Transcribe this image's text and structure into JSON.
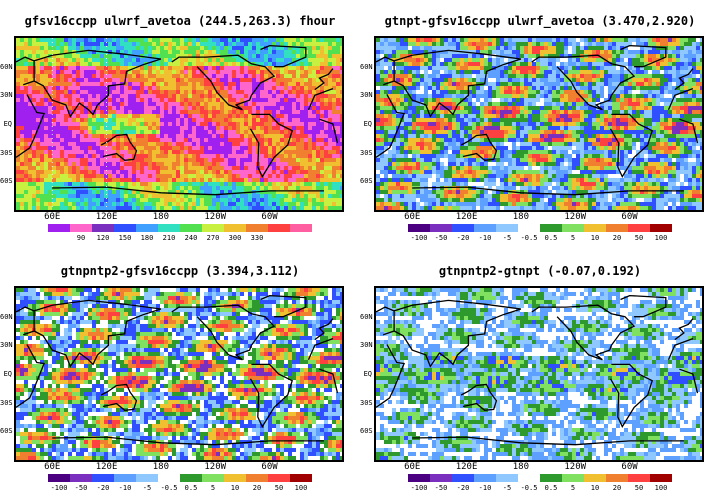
{
  "panels": [
    {
      "title": "gfsv16ccpp  ulwrf_avetoa  (244.5,263.3)  fhour",
      "colorbar": [
        "#a020f0",
        "#ff66cc",
        "#7b2fbe",
        "#3050ff",
        "#40a0ff",
        "#30e0c0",
        "#50e050",
        "#c8f040",
        "#f0c030",
        "#f08030",
        "#ff4040",
        "#ff5fa0"
      ],
      "colorbar_labels": [
        "90",
        "120",
        "150",
        "180",
        "210",
        "240",
        "270",
        "300",
        "330"
      ],
      "palette": [
        "#3050ff",
        "#40a0ff",
        "#30e0c0",
        "#50e050",
        "#c8f040",
        "#f0c030",
        "#f08030",
        "#ff4040",
        "#ff66cc",
        "#a020f0"
      ],
      "field": "olr"
    },
    {
      "title": "gtnpt-gfsv16ccpp  ulwrf_avetoa  (3.470,2.920)",
      "colorbar": [
        "#4b0082",
        "#7b2fbe",
        "#3050ff",
        "#5ea0ff",
        "#8ec8ff",
        "#ffffff",
        "#2e9a2e",
        "#80e060",
        "#f0c030",
        "#f08030",
        "#ff4040",
        "#a00000"
      ],
      "colorbar_labels": [
        "-100",
        "-50",
        "-20",
        "-10",
        "-5",
        "-0.5",
        "0.5",
        "5",
        "10",
        "20",
        "50",
        "100"
      ],
      "palette": [
        "#ffffff",
        "#5ea0ff",
        "#8ec8ff",
        "#3050ff",
        "#2e9a2e",
        "#80e060",
        "#f0c030",
        "#f08030",
        "#ff4040",
        "#7b2fbe"
      ],
      "field": "diff"
    },
    {
      "title": "gtnpntp2-gfsv16ccpp  (3.394,3.112)",
      "colorbar": [
        "#4b0082",
        "#7b2fbe",
        "#3050ff",
        "#5ea0ff",
        "#8ec8ff",
        "#ffffff",
        "#2e9a2e",
        "#80e060",
        "#f0c030",
        "#f08030",
        "#ff4040",
        "#a00000"
      ],
      "colorbar_labels": [
        "-100",
        "-50",
        "-20",
        "-10",
        "-5",
        "-0.5",
        "0.5",
        "5",
        "10",
        "20",
        "50",
        "100"
      ],
      "palette": [
        "#5ea0ff",
        "#8ec8ff",
        "#3050ff",
        "#ffffff",
        "#2e9a2e",
        "#80e060",
        "#f0c030",
        "#f08030",
        "#ff4040",
        "#7b2fbe"
      ],
      "field": "diff"
    },
    {
      "title": "gtnpntp2-gtnpt  (-0.07,0.192)",
      "colorbar": [
        "#4b0082",
        "#7b2fbe",
        "#3050ff",
        "#5ea0ff",
        "#8ec8ff",
        "#ffffff",
        "#2e9a2e",
        "#80e060",
        "#f0c030",
        "#f08030",
        "#ff4040",
        "#a00000"
      ],
      "colorbar_labels": [
        "-100",
        "-50",
        "-20",
        "-10",
        "-5",
        "-0.5",
        "0.5",
        "5",
        "10",
        "20",
        "50",
        "100"
      ],
      "palette": [
        "#ffffff",
        "#ffffff",
        "#5ea0ff",
        "#8ec8ff",
        "#2e9a2e",
        "#80e060",
        "#3050ff",
        "#f0c030",
        "#ff4040",
        "#7b2fbe"
      ],
      "field": "diff2"
    }
  ],
  "lat_labels": [
    "60N",
    "30N",
    "EQ",
    "30S",
    "60S"
  ],
  "lon_labels": [
    "60E",
    "120E",
    "180",
    "120W",
    "60W"
  ]
}
